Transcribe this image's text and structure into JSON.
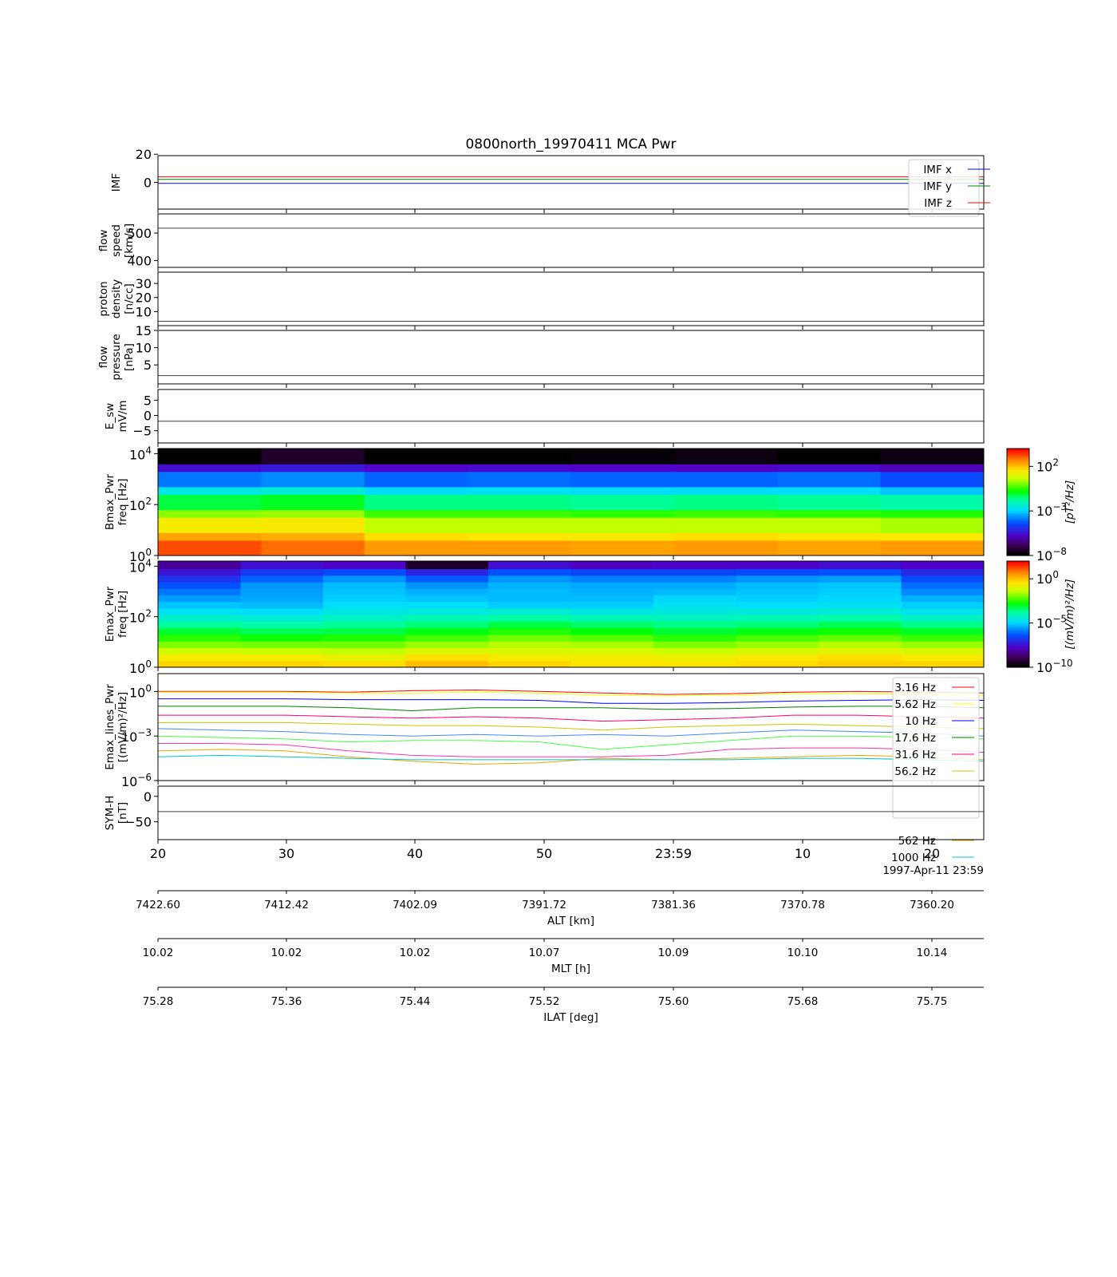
{
  "chart_data": {
    "type": "stacked-time-series",
    "title": "0800north_19970411 MCA Pwr",
    "xaxis": {
      "tick_labels": [
        "20",
        "30",
        "40",
        "50",
        "23:59",
        "10",
        "20"
      ],
      "date_label": "1997-Apr-11 23:59",
      "secondary_axes": [
        {
          "name": "ALT [km]",
          "ticks": [
            "7422.60",
            "7412.42",
            "7402.09",
            "7391.72",
            "7381.36",
            "7370.78",
            "7360.20"
          ]
        },
        {
          "name": "MLT [h]",
          "ticks": [
            "10.02",
            "10.02",
            "10.02",
            "10.07",
            "10.09",
            "10.10",
            "10.14"
          ]
        },
        {
          "name": "ILAT [deg]",
          "ticks": [
            "75.28",
            "75.36",
            "75.44",
            "75.52",
            "75.60",
            "75.68",
            "75.75"
          ]
        }
      ]
    },
    "panels": [
      {
        "id": "imf",
        "type": "line",
        "ylabel": [
          "IMF"
        ],
        "ylim": [
          -19,
          19
        ],
        "yticks": [
          {
            "v": 20,
            "t": "20"
          },
          {
            "v": 0,
            "t": "0"
          }
        ],
        "legend": "top-right",
        "series": [
          {
            "name": "IMF x",
            "color": "#0000ff",
            "values": [
              -0.7,
              -0.7,
              -0.7,
              -0.7,
              -0.7,
              -0.7,
              -0.7,
              -0.7,
              -0.7,
              -0.7,
              -0.7,
              -0.7,
              -0.7,
              -0.7
            ]
          },
          {
            "name": "IMF y",
            "color": "#008000",
            "values": [
              2.1,
              2.1,
              2.1,
              2.1,
              2.1,
              2.1,
              2.1,
              2.1,
              2.1,
              2.1,
              2.1,
              2.1,
              2.1,
              2.1
            ]
          },
          {
            "name": "IMF z",
            "color": "#ff0000",
            "values": [
              3.9,
              3.9,
              3.9,
              3.9,
              3.9,
              3.9,
              3.9,
              3.9,
              3.9,
              3.9,
              3.9,
              3.9,
              3.9,
              3.9
            ]
          }
        ]
      },
      {
        "id": "speed",
        "type": "line",
        "ylabel": [
          "flow",
          "speed",
          "[km/s]"
        ],
        "ylim": [
          375,
          570
        ],
        "yticks": [
          {
            "v": 500,
            "t": "500"
          },
          {
            "v": 400,
            "t": "400"
          }
        ],
        "series": [
          {
            "color": "#444444",
            "values": [
              518,
              518,
              518,
              518,
              518,
              518,
              518,
              518,
              518,
              518,
              518,
              518,
              518,
              518
            ]
          }
        ]
      },
      {
        "id": "density",
        "type": "line",
        "ylabel": [
          "proton",
          "density",
          "[n/cc]"
        ],
        "ylim": [
          0,
          38
        ],
        "yticks": [
          {
            "v": 30,
            "t": "30"
          },
          {
            "v": 20,
            "t": "20"
          },
          {
            "v": 10,
            "t": "10"
          }
        ],
        "series": [
          {
            "color": "#444444",
            "values": [
              3.1,
              3.1,
              3.1,
              3.1,
              3.1,
              3.1,
              3.1,
              3.1,
              3.1,
              3.1,
              3.1,
              3.1,
              3.1,
              3.1
            ]
          }
        ]
      },
      {
        "id": "pressure",
        "type": "line",
        "ylabel": [
          "flow",
          "pressure",
          "[nPa]"
        ],
        "ylim": [
          -0.5,
          15
        ],
        "yticks": [
          {
            "v": 15,
            "t": "15"
          },
          {
            "v": 10,
            "t": "10"
          },
          {
            "v": 5,
            "t": "5"
          }
        ],
        "series": [
          {
            "color": "#444444",
            "values": [
              1.9,
              1.9,
              1.9,
              1.9,
              1.9,
              1.9,
              1.9,
              1.9,
              1.9,
              1.9,
              1.9,
              1.9,
              1.9,
              1.9
            ]
          }
        ]
      },
      {
        "id": "esw",
        "type": "line",
        "ylabel": [
          "E_sw",
          "mV/m"
        ],
        "ylim": [
          -9,
          8.5
        ],
        "yticks": [
          {
            "v": 5,
            "t": "5"
          },
          {
            "v": 0,
            "t": "0"
          },
          {
            "v": -5,
            "t": "−5"
          }
        ],
        "series": [
          {
            "color": "#444444",
            "values": [
              -1.9,
              -1.9,
              -1.9,
              -1.9,
              -1.9,
              -1.9,
              -1.9,
              -1.9,
              -1.9,
              -1.9,
              -1.9,
              -1.9,
              -1.9,
              -1.9
            ]
          }
        ]
      },
      {
        "id": "bmax",
        "type": "heatmap",
        "ylabel": [
          "Bmax_Pwr",
          "freq [Hz]"
        ],
        "log_ylim": [
          0,
          4.2
        ],
        "yticks": [
          4,
          2,
          0
        ],
        "colorbar": {
          "label": "[pT²/Hz]",
          "ticks": [
            2,
            -3,
            -8
          ],
          "lim": [
            -8,
            4
          ]
        },
        "freq_bin_edges_log": [
          0,
          0.3,
          0.6,
          0.9,
          1.2,
          1.5,
          1.8,
          2.1,
          2.4,
          2.7,
          3.0,
          3.3,
          3.6,
          3.9,
          4.2
        ],
        "values_log": [
          [
            3.3,
            2.4,
            1.4,
            0.2,
            -1.2,
            -2.6,
            -4.0,
            -5.6,
            -8.0
          ],
          [
            3.0,
            2.3,
            1.5,
            0.3,
            -1.0,
            -2.4,
            -3.8,
            -5.4,
            -7.5
          ],
          [
            2.5,
            1.7,
            0.6,
            -0.4,
            -1.6,
            -2.9,
            -4.2,
            -5.8,
            -8.0
          ],
          [
            2.5,
            1.6,
            0.6,
            -0.4,
            -1.6,
            -2.8,
            -4.1,
            -5.7,
            -8.0
          ],
          [
            2.4,
            1.5,
            0.6,
            -0.5,
            -1.7,
            -2.9,
            -4.2,
            -5.8,
            -7.9
          ],
          [
            2.5,
            1.7,
            0.6,
            -0.4,
            -1.6,
            -2.9,
            -4.2,
            -5.9,
            -7.8
          ],
          [
            2.4,
            1.6,
            0.6,
            -0.5,
            -1.7,
            -2.9,
            -4.1,
            -5.7,
            -8.0
          ],
          [
            2.5,
            1.5,
            0.4,
            -0.6,
            -1.9,
            -3.2,
            -4.5,
            -6.0,
            -7.8
          ]
        ]
      },
      {
        "id": "emax",
        "type": "heatmap",
        "ylabel": [
          "Emax_Pwr",
          "freq [Hz]"
        ],
        "log_ylim": [
          0,
          4.2
        ],
        "yticks": [
          4,
          2,
          0
        ],
        "colorbar": {
          "label": "[(mV/m)²/Hz]",
          "ticks": [
            0,
            -5,
            -10
          ],
          "lim": [
            -10,
            2
          ]
        },
        "freq_bin_edges_log": [
          0,
          0.26,
          0.52,
          0.78,
          1.04,
          1.3,
          1.56,
          1.82,
          2.08,
          2.34,
          2.6,
          2.86,
          3.12,
          3.38,
          3.64,
          3.9,
          4.2
        ],
        "values_log": [
          [
            -0.2,
            -0.6,
            -1.2,
            -1.9,
            -2.5,
            -3.1,
            -3.7,
            -4.3,
            -4.8,
            -5.2,
            -5.6,
            -6.0,
            -6.4,
            -6.9,
            -7.5,
            -8.3
          ],
          [
            -0.2,
            -0.6,
            -1.3,
            -2.0,
            -2.7,
            -3.3,
            -3.9,
            -4.4,
            -4.9,
            -5.3,
            -5.5,
            -5.6,
            -5.7,
            -6.2,
            -6.8,
            -7.6
          ],
          [
            -0.3,
            -0.8,
            -1.4,
            -2.0,
            -2.6,
            -3.2,
            -3.7,
            -4.2,
            -4.6,
            -4.9,
            -5.1,
            -5.2,
            -5.3,
            -5.7,
            -6.5,
            -7.8
          ],
          [
            0.1,
            -0.3,
            -1.0,
            -1.7,
            -2.3,
            -2.9,
            -3.5,
            -4.0,
            -4.5,
            -4.9,
            -5.2,
            -5.4,
            -5.7,
            -6.3,
            -7.2,
            -9.5
          ],
          [
            -0.2,
            -0.6,
            -1.1,
            -1.5,
            -2.0,
            -2.6,
            -3.2,
            -3.8,
            -4.4,
            -5.1,
            -5.3,
            -5.3,
            -5.4,
            -5.7,
            -6.4,
            -7.6
          ],
          [
            -0.4,
            -0.6,
            -1.1,
            -1.6,
            -2.2,
            -2.8,
            -3.4,
            -4.0,
            -4.6,
            -5.1,
            -5.3,
            -5.4,
            -5.5,
            -5.9,
            -6.6,
            -7.9
          ],
          [
            -0.4,
            -0.7,
            -1.3,
            -1.9,
            -2.5,
            -3.1,
            -3.6,
            -4.1,
            -4.5,
            -4.8,
            -5.0,
            -5.3,
            -5.5,
            -5.9,
            -6.6,
            -7.8
          ],
          [
            -0.3,
            -0.5,
            -1.1,
            -1.7,
            -2.3,
            -2.9,
            -3.5,
            -4.0,
            -4.5,
            -4.9,
            -5.1,
            -5.2,
            -5.3,
            -5.7,
            -6.5,
            -7.8
          ],
          [
            -0.1,
            -0.3,
            -0.9,
            -1.5,
            -2.1,
            -2.7,
            -3.3,
            -3.9,
            -4.4,
            -4.8,
            -5.0,
            -5.1,
            -5.2,
            -5.6,
            -6.4,
            -7.6
          ],
          [
            -0.2,
            -0.5,
            -1.1,
            -1.7,
            -2.4,
            -3.0,
            -3.6,
            -4.2,
            -4.7,
            -5.1,
            -5.4,
            -5.8,
            -6.1,
            -6.5,
            -7.1,
            -7.8
          ]
        ]
      },
      {
        "id": "emax_lines",
        "type": "line",
        "ylabel": [
          "Emax_lines_Pwr",
          "[(mV/m)²/Hz]"
        ],
        "log_ylim": [
          -6,
          1.2
        ],
        "yticks": [
          0,
          -3,
          -6
        ],
        "legend": "right",
        "series": [
          {
            "name": "3.16 Hz",
            "color": "#ff0000",
            "values": [
              0.0,
              0.0,
              0.0,
              -0.05,
              0.05,
              0.1,
              0.0,
              -0.1,
              -0.2,
              -0.15,
              -0.05,
              0.0,
              -0.05,
              -0.1
            ]
          },
          {
            "name": "5.62 Hz",
            "color": "#ffff00",
            "values": [
              -0.05,
              -0.05,
              -0.05,
              -0.1,
              -0.1,
              -0.05,
              -0.1,
              -0.25,
              -0.3,
              -0.25,
              -0.15,
              -0.15,
              -0.2,
              -0.3
            ]
          },
          {
            "name": "10 Hz",
            "color": "#0000ff",
            "values": [
              -0.5,
              -0.5,
              -0.5,
              -0.55,
              -0.55,
              -0.55,
              -0.6,
              -0.8,
              -0.8,
              -0.75,
              -0.65,
              -0.6,
              -0.55,
              -0.6
            ]
          },
          {
            "name": "17.6 Hz",
            "color": "#008000",
            "values": [
              -1.0,
              -1.0,
              -1.0,
              -1.1,
              -1.3,
              -1.1,
              -1.1,
              -1.1,
              -1.2,
              -1.15,
              -1.05,
              -1.0,
              -1.0,
              -1.1
            ]
          },
          {
            "name": "31.6 Hz",
            "color": "#ff0066",
            "values": [
              -1.6,
              -1.6,
              -1.6,
              -1.7,
              -1.8,
              -1.7,
              -1.8,
              -2.0,
              -1.9,
              -1.8,
              -1.6,
              -1.6,
              -1.7,
              -1.8
            ]
          },
          {
            "name": "56.2 Hz",
            "color": "#c8c800",
            "values": [
              -2.1,
              -2.1,
              -2.1,
              -2.2,
              -2.3,
              -2.3,
              -2.4,
              -2.6,
              -2.4,
              -2.3,
              -2.2,
              -2.3,
              -2.4,
              -2.5
            ]
          },
          {
            "name": "",
            "color": "#4488ff",
            "values": [
              -2.5,
              -2.6,
              -2.7,
              -2.9,
              -3.0,
              -2.9,
              -3.0,
              -2.9,
              -3.0,
              -2.8,
              -2.6,
              -2.7,
              -2.8,
              -3.0
            ]
          },
          {
            "name": "",
            "color": "#44ff44",
            "values": [
              -3.0,
              -3.1,
              -3.2,
              -3.4,
              -3.3,
              -3.3,
              -3.4,
              -3.9,
              -3.6,
              -3.3,
              -3.0,
              -3.0,
              -3.1,
              -3.2
            ]
          },
          {
            "name": "",
            "color": "#ff33aa",
            "values": [
              -3.5,
              -3.5,
              -3.6,
              -4.0,
              -4.3,
              -4.4,
              -4.4,
              -4.4,
              -4.3,
              -3.9,
              -3.8,
              -3.8,
              -3.9,
              -4.1
            ]
          },
          {
            "name": "562 Hz",
            "color": "#e6a800",
            "values": [
              -4.0,
              -3.9,
              -4.0,
              -4.4,
              -4.7,
              -4.9,
              -4.8,
              -4.5,
              -4.6,
              -4.5,
              -4.4,
              -4.3,
              -4.4,
              -4.6
            ]
          },
          {
            "name": "1000 Hz",
            "color": "#00c8c8",
            "values": [
              -4.4,
              -4.3,
              -4.4,
              -4.5,
              -4.6,
              -4.6,
              -4.6,
              -4.6,
              -4.6,
              -4.6,
              -4.5,
              -4.5,
              -4.6,
              -4.7
            ]
          }
        ]
      },
      {
        "id": "symh",
        "type": "line",
        "ylabel": [
          "SYM-H",
          "[nT]"
        ],
        "ylim": [
          -85,
          20
        ],
        "yticks": [
          {
            "v": 0,
            "t": "0"
          },
          {
            "v": -50,
            "t": "−50"
          }
        ],
        "series": [
          {
            "color": "#444444",
            "values": [
              -30,
              -30,
              -30,
              -30,
              -30,
              -30,
              -30,
              -30,
              -30,
              -30,
              -30,
              -30,
              -30,
              -30
            ]
          }
        ]
      }
    ]
  }
}
